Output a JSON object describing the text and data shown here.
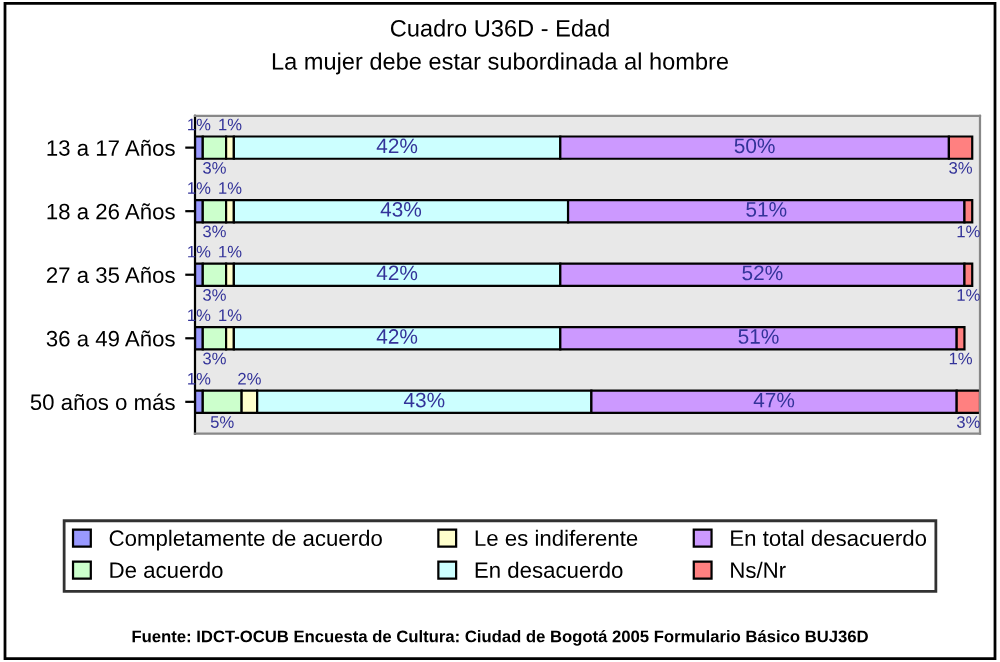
{
  "chart_data": {
    "type": "bar",
    "orientation": "horizontal",
    "stacked": true,
    "title": "Cuadro U36D - Edad",
    "subtitle": "La mujer debe estar subordinada al hombre",
    "categories": [
      "13 a 17 Años",
      "18 a 26 Años",
      "27 a 35 Años",
      "36 a 49 Años",
      "50 años o más"
    ],
    "series": [
      {
        "name": "Completamente de acuerdo",
        "color": "#9999ff",
        "values": [
          1,
          1,
          1,
          1,
          1
        ],
        "value_labels": [
          "1%",
          "1%",
          "1%",
          "1%",
          "1%"
        ]
      },
      {
        "name": "De acuerdo",
        "color": "#ccffcc",
        "values": [
          3,
          3,
          3,
          3,
          5
        ],
        "value_labels": [
          "3%",
          "3%",
          "3%",
          "3%",
          "5%"
        ]
      },
      {
        "name": "Le es indiferente",
        "color": "#ffffcc",
        "values": [
          1,
          1,
          1,
          1,
          2
        ],
        "value_labels": [
          "1%",
          "1%",
          "1%",
          "1%",
          "2%"
        ]
      },
      {
        "name": "En desacuerdo",
        "color": "#ccffff",
        "values": [
          42,
          43,
          42,
          42,
          43
        ],
        "value_labels": [
          "42%",
          "43%",
          "42%",
          "42%",
          "43%"
        ]
      },
      {
        "name": "En total desacuerdo",
        "color": "#cc99ff",
        "values": [
          50,
          51,
          52,
          51,
          47
        ],
        "value_labels": [
          "50%",
          "51%",
          "52%",
          "51%",
          "47%"
        ]
      },
      {
        "name": "Ns/Nr",
        "color": "#ff8080",
        "values": [
          3,
          1,
          1,
          1,
          3
        ],
        "value_labels": [
          "3%",
          "1%",
          "1%",
          "1%",
          "3%"
        ]
      }
    ],
    "legend": "bottom",
    "grid": false,
    "tick_labels": "y",
    "annotations": [
      "Fuente: IDCT-OCUB Encuesta de Cultura: Ciudad de Bogotá 2005 Formulario Básico BUJ36D"
    ]
  }
}
